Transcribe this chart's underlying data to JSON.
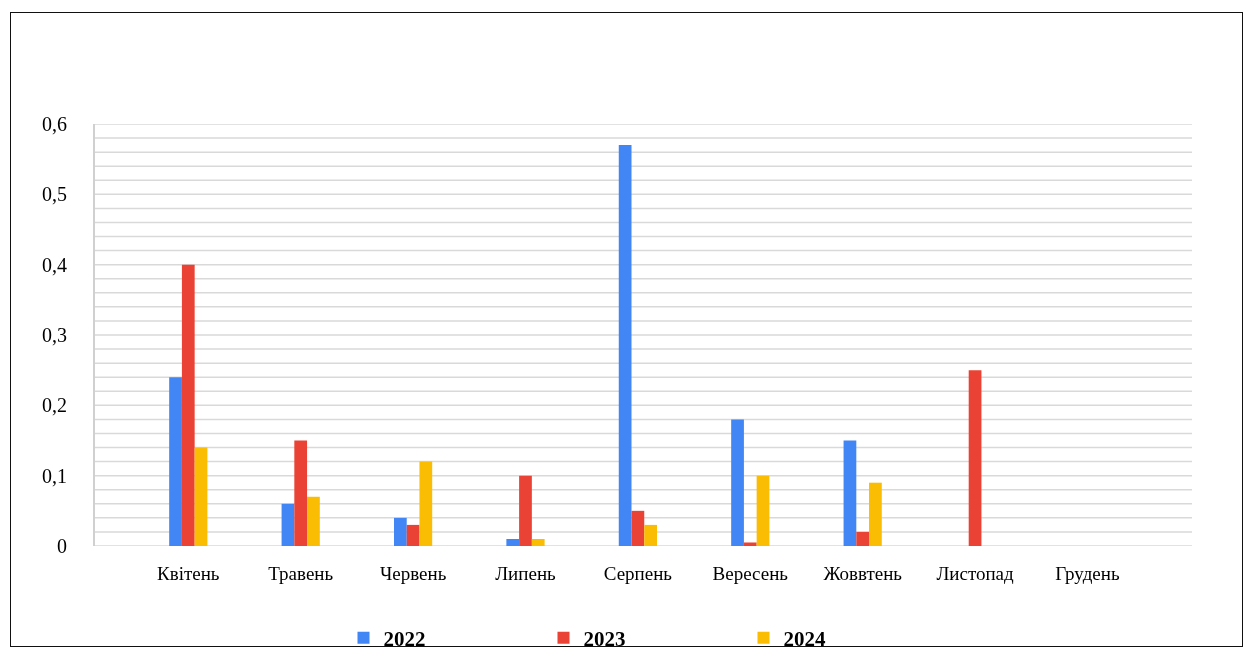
{
  "chart_data": {
    "type": "bar",
    "categories": [
      "Квітень",
      "Травень",
      "Червень",
      "Липень",
      "Серпень",
      "Вересень",
      "Жоввтень",
      "Листопад",
      "Грудень"
    ],
    "series": [
      {
        "name": "2022",
        "color": "#4285f4",
        "values": [
          0.24,
          0.06,
          0.04,
          0.01,
          0.57,
          0.18,
          0.15,
          null,
          null
        ]
      },
      {
        "name": "2023",
        "color": "#ea4335",
        "values": [
          0.4,
          0.15,
          0.03,
          0.1,
          0.05,
          0.005,
          0.02,
          0.25,
          null
        ]
      },
      {
        "name": "2024",
        "color": "#fbbc04",
        "values": [
          0.14,
          0.07,
          0.12,
          0.01,
          0.03,
          0.1,
          0.09,
          null,
          null
        ]
      }
    ],
    "ylim": [
      0,
      0.6
    ],
    "yticks": [
      0,
      {
        "value": 0.02,
        "label": null
      },
      {
        "value": 0.04,
        "label": null
      },
      {
        "value": 0.06,
        "label": null
      },
      {
        "value": 0.08,
        "label": null
      },
      {
        "value": 0.1,
        "label": "0,1"
      },
      {
        "value": 0.12,
        "label": null
      },
      {
        "value": 0.14,
        "label": null
      },
      {
        "value": 0.16,
        "label": null
      },
      {
        "value": 0.18,
        "label": null
      },
      {
        "value": 0.2,
        "label": "0,2"
      },
      {
        "value": 0.22,
        "label": null
      },
      {
        "value": 0.24,
        "label": null
      },
      {
        "value": 0.26,
        "label": null
      },
      {
        "value": 0.28,
        "label": null
      },
      {
        "value": 0.3,
        "label": "0,3"
      },
      {
        "value": 0.32,
        "label": null
      },
      {
        "value": 0.34,
        "label": null
      },
      {
        "value": 0.36,
        "label": null
      },
      {
        "value": 0.38,
        "label": null
      },
      {
        "value": 0.4,
        "label": "0,4"
      },
      {
        "value": 0.42,
        "label": null
      },
      {
        "value": 0.44,
        "label": null
      },
      {
        "value": 0.46,
        "label": null
      },
      {
        "value": 0.48,
        "label": null
      },
      {
        "value": 0.5,
        "label": "0,5"
      },
      {
        "value": 0.52,
        "label": null
      },
      {
        "value": 0.54,
        "label": null
      },
      {
        "value": 0.56,
        "label": null
      },
      {
        "value": 0.58,
        "label": null
      },
      {
        "value": 0.6,
        "label": "0,6"
      }
    ],
    "grid": "y",
    "legend": "bottom"
  }
}
